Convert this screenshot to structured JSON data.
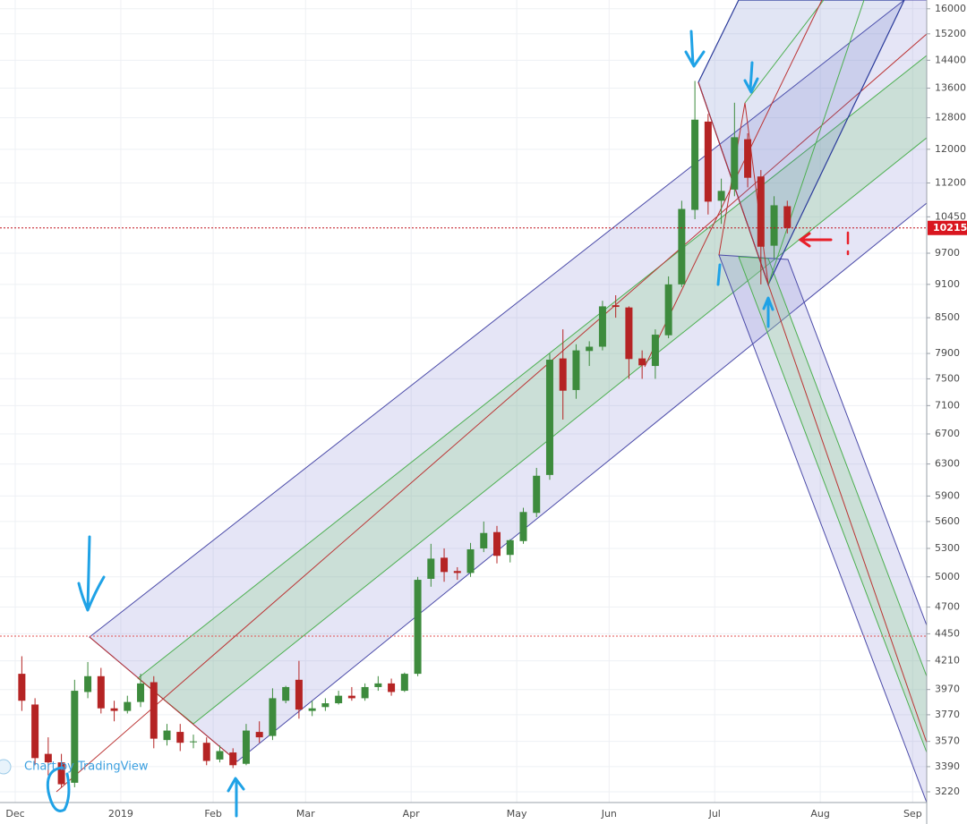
{
  "chart_data": {
    "type": "candlestick",
    "log_scale": true,
    "grid": true,
    "up_color": "#3d8b3d",
    "down_color": "#b52424",
    "ylim": [
      3150,
      16290
    ],
    "yticks": [
      16000,
      15200,
      14400,
      13600,
      12800,
      12000,
      11200,
      10450,
      9700,
      9100,
      8500,
      7900,
      7500,
      7100,
      6700,
      6300,
      5900,
      5600,
      5300,
      5000,
      4700,
      4450,
      4210,
      3970,
      3770,
      3570,
      3390,
      3220
    ],
    "categories": [
      "Dec",
      null,
      null,
      null,
      null,
      null,
      null,
      null,
      "2019",
      null,
      null,
      null,
      null,
      null,
      null,
      "Feb",
      null,
      null,
      null,
      null,
      null,
      null,
      "Mar",
      null,
      null,
      null,
      null,
      null,
      null,
      null,
      "Apr",
      null,
      null,
      null,
      null,
      null,
      null,
      null,
      "May",
      null,
      null,
      null,
      null,
      null,
      null,
      "Jun",
      null,
      null,
      null,
      null,
      null,
      null,
      null,
      "Jul",
      null,
      null,
      null,
      null,
      null,
      null,
      null,
      "Aug",
      null,
      null,
      null,
      null,
      null,
      null,
      "Sep"
    ],
    "open": [
      4100,
      3850,
      3480,
      3420,
      3280,
      3950,
      4080,
      3820,
      3800,
      3870,
      4030,
      3580,
      3640,
      3570,
      3560,
      3440,
      3490,
      3410,
      3640,
      3610,
      3880,
      4050,
      3800,
      3830,
      3860,
      3920,
      3900,
      3990,
      4020,
      3960,
      4100,
      4980,
      5200,
      5060,
      5040,
      5300,
      5480,
      5230,
      5380,
      5700,
      6160,
      7820,
      7330,
      7940,
      8010,
      8720,
      8680,
      7820,
      7700,
      8200,
      9100,
      10600,
      12700,
      10800,
      11050,
      12250,
      11350,
      9850,
      10680,
      null,
      null,
      null,
      null,
      null,
      null,
      null,
      null,
      null,
      null
    ],
    "high": [
      4250,
      3900,
      3600,
      3480,
      4050,
      4200,
      4150,
      3880,
      3920,
      4100,
      4080,
      3700,
      3700,
      3620,
      3600,
      3540,
      3520,
      3700,
      3720,
      3980,
      4000,
      4210,
      3880,
      3900,
      3960,
      3990,
      4020,
      4080,
      4060,
      4110,
      5000,
      5350,
      5300,
      5100,
      5360,
      5600,
      5550,
      5400,
      5760,
      6250,
      7900,
      8300,
      8050,
      8100,
      8800,
      8900,
      8700,
      7950,
      8300,
      9250,
      10800,
      13800,
      12900,
      11300,
      13200,
      12400,
      11500,
      10900,
      10800,
      null,
      null,
      null,
      null,
      null,
      null,
      null,
      null,
      null,
      null
    ],
    "low": [
      3800,
      3400,
      3330,
      3250,
      3250,
      3900,
      3780,
      3720,
      3780,
      3830,
      3520,
      3540,
      3500,
      3520,
      3400,
      3420,
      3380,
      3400,
      3560,
      3580,
      3860,
      3740,
      3760,
      3800,
      3850,
      3880,
      3880,
      3960,
      3920,
      3950,
      4080,
      4900,
      4950,
      4970,
      5000,
      5260,
      5140,
      5150,
      5350,
      5650,
      6100,
      6900,
      7200,
      7700,
      7950,
      8500,
      7500,
      7500,
      7500,
      8150,
      9050,
      10400,
      10500,
      10300,
      10900,
      11100,
      9100,
      9600,
      10100,
      null,
      null,
      null,
      null,
      null,
      null,
      null,
      null,
      null,
      null
    ],
    "close": [
      3880,
      3450,
      3420,
      3270,
      3960,
      4080,
      3820,
      3800,
      3870,
      4020,
      3590,
      3650,
      3560,
      3570,
      3430,
      3500,
      3400,
      3650,
      3600,
      3900,
      3990,
      3810,
      3820,
      3860,
      3920,
      3900,
      3990,
      4020,
      3950,
      4100,
      4970,
      5190,
      5050,
      5040,
      5290,
      5470,
      5220,
      5390,
      5710,
      6150,
      7800,
      7320,
      7950,
      8010,
      8700,
      8690,
      7810,
      7710,
      8210,
      9100,
      10620,
      12750,
      10780,
      11020,
      12300,
      11320,
      9830,
      10700,
      10215,
      null,
      null,
      null,
      null,
      null,
      null,
      null,
      null,
      null,
      null
    ],
    "last_price": 10215,
    "watermark": "Chart by TradingView"
  }
}
